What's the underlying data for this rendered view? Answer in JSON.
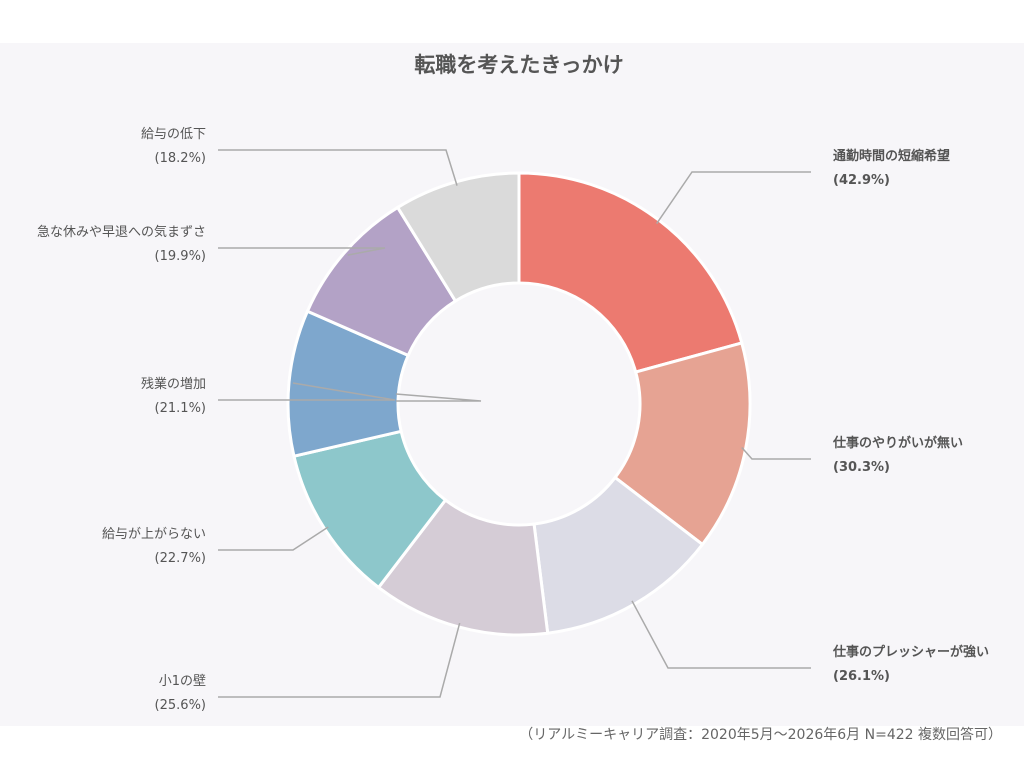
{
  "chart_data": {
    "type": "pie",
    "title": "転職を考えたきっかけ",
    "categories": [
      "通勤時間の短縮希望",
      "仕事のやりがいが無い",
      "仕事のプレッシャーが強い",
      "小1の壁",
      "給与が上がらない",
      "残業の増加",
      "急な休みや早退への気まずさ",
      "給与の低下"
    ],
    "values": [
      42.9,
      30.3,
      26.1,
      25.6,
      22.7,
      21.1,
      19.9,
      18.2
    ],
    "value_labels": [
      "(42.9%)",
      "(30.3%)",
      "(26.1%)",
      "(25.6%)",
      "(22.7%)",
      "(21.1%)",
      "(19.9%)",
      "(18.2%)"
    ],
    "colors": [
      "#ec7a70",
      "#e6a393",
      "#dcdce6",
      "#d5ccd6",
      "#8dc7cb",
      "#7ea7cd",
      "#b3a2c6",
      "#dadada"
    ],
    "bold_labels": [
      true,
      true,
      true,
      false,
      false,
      false,
      false,
      false
    ],
    "donut": true,
    "legend": "none"
  },
  "footer": {
    "source": "（リアルミーキャリア調査：2020年5月～2026年6月 N=422 複数回答可）"
  }
}
